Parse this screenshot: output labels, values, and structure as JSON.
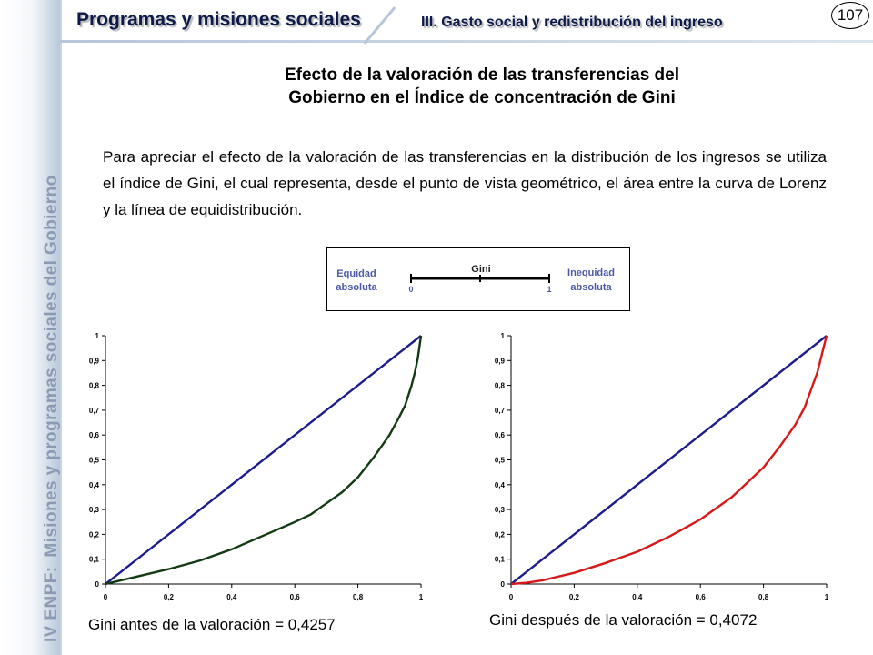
{
  "header": {
    "main_title": "Programas y misiones sociales",
    "subtitle": "III. Gasto social y redistribución del ingreso",
    "page_number": "107"
  },
  "sidebar": {
    "part1": "IV ENPF:",
    "part2": "Misiones y programas sociales del Gobierno"
  },
  "title": {
    "line1": "Efecto de la valoración de las transferencias del",
    "line2": "Gobierno en el Índice de concentración de Gini"
  },
  "paragraph": "Para apreciar el efecto de la valoración de las transferencias en la distribución de los ingresos se utiliza el índice de Gini, el cual representa, desde el punto de vista geométrico, el área entre la curva de Lorenz y la línea de equidistribución.",
  "gini_scale": {
    "label": "Gini",
    "left_label_1": "Equidad",
    "left_label_2": "absoluta",
    "right_label_1": "Inequidad",
    "right_label_2": "absoluta",
    "min": "0",
    "max": "1",
    "label_color": "#4a5aa8"
  },
  "captions": {
    "before": "Gini antes de la valoración = 0,4257",
    "after": "Gini después de la valoración = 0,4072"
  },
  "chart_data": [
    {
      "type": "line",
      "title": "",
      "xlabel": "",
      "ylabel": "",
      "xlim": [
        0,
        1
      ],
      "ylim": [
        0,
        1
      ],
      "x_ticks": [
        "0",
        "0,2",
        "0,4",
        "0,6",
        "0,8",
        "1"
      ],
      "y_ticks": [
        "0",
        "0,1",
        "0,2",
        "0,3",
        "0,4",
        "0,5",
        "0,6",
        "0,7",
        "0,8",
        "0,9",
        "1"
      ],
      "grid": false,
      "series": [
        {
          "color": "#1c1c8c",
          "x": [
            0,
            1
          ],
          "y": [
            0,
            1
          ]
        },
        {
          "color": "#123a12",
          "x": [
            0,
            0.1,
            0.2,
            0.3,
            0.4,
            0.5,
            0.6,
            0.65,
            0.7,
            0.75,
            0.8,
            0.85,
            0.9,
            0.93,
            0.95,
            0.97,
            0.98,
            0.99,
            1.0
          ],
          "y": [
            0,
            0.03,
            0.06,
            0.095,
            0.14,
            0.195,
            0.25,
            0.28,
            0.325,
            0.37,
            0.43,
            0.51,
            0.6,
            0.67,
            0.72,
            0.8,
            0.85,
            0.91,
            1.0
          ]
        }
      ]
    },
    {
      "type": "line",
      "title": "",
      "xlabel": "",
      "ylabel": "",
      "xlim": [
        0,
        1
      ],
      "ylim": [
        0,
        1
      ],
      "x_ticks": [
        "0",
        "0,2",
        "0,4",
        "0,6",
        "0,8",
        "1"
      ],
      "y_ticks": [
        "0",
        "0,1",
        "0,2",
        "0,3",
        "0,4",
        "0,5",
        "0,6",
        "0,7",
        "0,8",
        "0,9",
        "1"
      ],
      "grid": false,
      "series": [
        {
          "color": "#1c1c8c",
          "x": [
            0,
            1
          ],
          "y": [
            0,
            1
          ]
        },
        {
          "color": "#d81818",
          "x": [
            0,
            0.05,
            0.1,
            0.2,
            0.3,
            0.4,
            0.5,
            0.6,
            0.7,
            0.8,
            0.85,
            0.9,
            0.93,
            0.95,
            0.97,
            0.98,
            0.99,
            1.0
          ],
          "y": [
            0,
            0.005,
            0.015,
            0.045,
            0.085,
            0.13,
            0.19,
            0.26,
            0.35,
            0.47,
            0.55,
            0.64,
            0.71,
            0.78,
            0.85,
            0.9,
            0.95,
            1.0
          ]
        }
      ]
    }
  ]
}
